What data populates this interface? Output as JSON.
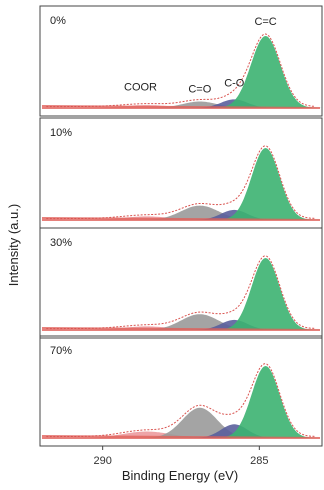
{
  "chart_data": {
    "type": "area",
    "xlabel": "Binding Energy (eV)",
    "ylabel": "Intensity (a.u.)",
    "x_axis": {
      "range": [
        292,
        283
      ],
      "reversed": true,
      "ticks": [
        290,
        285
      ]
    },
    "colors": {
      "c_c": "#3cb371",
      "c_o": "#5a5f9c",
      "c_eq_o": "#9a9a9a",
      "coor": "#e8868a",
      "envelope": "#d9534f",
      "baseline": "#e0605a"
    },
    "panels": [
      {
        "label": "0%",
        "peak_labels": [
          "COOR",
          "C=O",
          "C-O",
          "C=C"
        ],
        "peaks": [
          {
            "component": "c_c",
            "center": 284.8,
            "amplitude": 1.0,
            "fwhm": 1.1
          },
          {
            "component": "c_o",
            "center": 285.8,
            "amplitude": 0.12,
            "fwhm": 1.0
          },
          {
            "component": "c_eq_o",
            "center": 286.9,
            "amplitude": 0.09,
            "fwhm": 1.3
          },
          {
            "component": "coor",
            "center": 288.6,
            "amplitude": 0.04,
            "fwhm": 1.8
          }
        ]
      },
      {
        "label": "10%",
        "peak_labels": [],
        "peaks": [
          {
            "component": "c_c",
            "center": 284.8,
            "amplitude": 1.0,
            "fwhm": 1.05
          },
          {
            "component": "c_o",
            "center": 285.8,
            "amplitude": 0.14,
            "fwhm": 1.0
          },
          {
            "component": "c_eq_o",
            "center": 286.9,
            "amplitude": 0.2,
            "fwhm": 1.4
          },
          {
            "component": "coor",
            "center": 288.6,
            "amplitude": 0.05,
            "fwhm": 1.8
          }
        ]
      },
      {
        "label": "30%",
        "peak_labels": [],
        "peaks": [
          {
            "component": "c_c",
            "center": 284.8,
            "amplitude": 1.0,
            "fwhm": 1.05
          },
          {
            "component": "c_o",
            "center": 285.8,
            "amplitude": 0.14,
            "fwhm": 1.0
          },
          {
            "component": "c_eq_o",
            "center": 286.9,
            "amplitude": 0.22,
            "fwhm": 1.4
          },
          {
            "component": "coor",
            "center": 288.6,
            "amplitude": 0.05,
            "fwhm": 1.8
          }
        ]
      },
      {
        "label": "70%",
        "peak_labels": [],
        "peaks": [
          {
            "component": "c_c",
            "center": 284.8,
            "amplitude": 1.0,
            "fwhm": 1.05
          },
          {
            "component": "c_o",
            "center": 285.8,
            "amplitude": 0.19,
            "fwhm": 1.0
          },
          {
            "component": "c_eq_o",
            "center": 286.9,
            "amplitude": 0.42,
            "fwhm": 1.3
          },
          {
            "component": "coor",
            "center": 288.6,
            "amplitude": 0.09,
            "fwhm": 1.8
          }
        ]
      }
    ]
  }
}
